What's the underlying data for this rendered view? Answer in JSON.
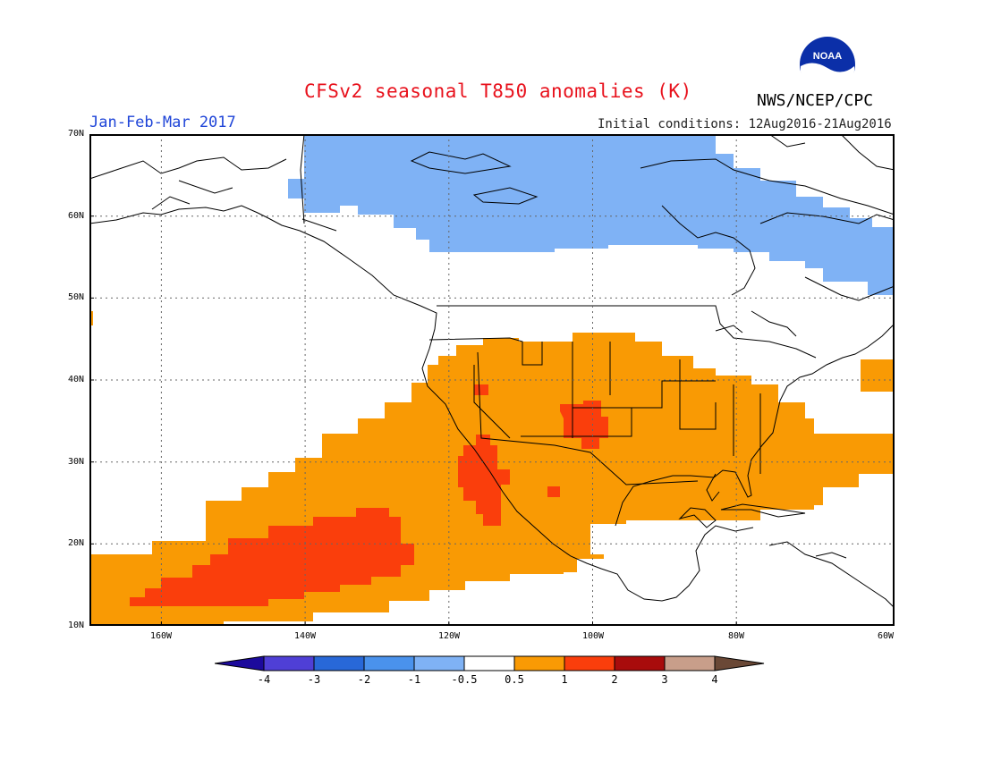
{
  "header": {
    "title": "CFSv2 seasonal T850 anomalies (K)",
    "period": "Jan-Feb-Mar 2017",
    "agency": "NWS/NCEP/CPC",
    "initial_conditions": "Initial conditions: 12Aug2016-21Aug2016",
    "logo_text": "NOAA"
  },
  "map": {
    "projection": "latitude-longitude",
    "lon_range": [
      -172,
      -60
    ],
    "lat_range": [
      10,
      70
    ],
    "lat_labels": [
      "70N",
      "60N",
      "50N",
      "40N",
      "30N",
      "20N",
      "10N"
    ],
    "lon_labels": [
      "160W",
      "140W",
      "120W",
      "100W",
      "80W",
      "60W"
    ],
    "gridlines": "dotted",
    "regions": {
      "cold_north": {
        "category": "-1 to -0.5",
        "color": "#7fb2f5"
      },
      "warm_main": {
        "category": "0.5 to 1",
        "color": "#f99a04"
      },
      "warm_strong": {
        "category": "1 to 2",
        "color": "#fa3e0c"
      }
    }
  },
  "colorbar": {
    "labels": [
      "-4",
      "-3",
      "-2",
      "-1",
      "-0.5",
      "0.5",
      "1",
      "2",
      "3",
      "4"
    ],
    "colors": [
      "#1c0a9c",
      "#4f3fd6",
      "#2868d8",
      "#4a92ec",
      "#7fb2f5",
      "#ffffff",
      "#f99a04",
      "#fa3e0c",
      "#a80c0c",
      "#c89e8a",
      "#6a4836"
    ]
  }
}
